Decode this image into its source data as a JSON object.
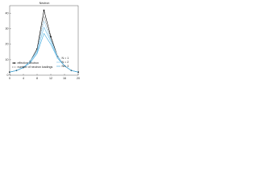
{
  "chart_data": {
    "type": "line",
    "title": "Neutron",
    "x": [
      0,
      2,
      4,
      6,
      8,
      10,
      12,
      14,
      16,
      18,
      20
    ],
    "series": [
      {
        "name": "effective neutron",
        "color": "#000000",
        "markers": true,
        "values": [
          2,
          3,
          5,
          9,
          17,
          42,
          25,
          12,
          6,
          3,
          2
        ]
      },
      {
        "name": "number of neutron loadings",
        "color": "#000000",
        "markers": false,
        "values": [
          2,
          3,
          5,
          9,
          16,
          38,
          24,
          12,
          6,
          3,
          2
        ]
      },
      {
        "name": "N = 1",
        "color": "#9fd3f0",
        "markers": false,
        "values": [
          2,
          3,
          5,
          9,
          16,
          35,
          23,
          12,
          6,
          3,
          2
        ]
      },
      {
        "name": "N = 2",
        "color": "#6fbfe8",
        "markers": false,
        "values": [
          2,
          3,
          5,
          9,
          15,
          31,
          22,
          11,
          6,
          3,
          2
        ]
      },
      {
        "name": "N = 3",
        "color": "#3fa9de",
        "markers": false,
        "values": [
          2,
          3,
          5,
          8,
          14,
          27,
          20,
          11,
          6,
          3,
          2
        ]
      }
    ],
    "xlim": [
      0,
      20
    ],
    "xticks": [
      0,
      4,
      8,
      12,
      16,
      20
    ],
    "ylim": [
      0,
      45
    ],
    "yticks": [
      0,
      10,
      20,
      30,
      40
    ],
    "grid": false
  }
}
